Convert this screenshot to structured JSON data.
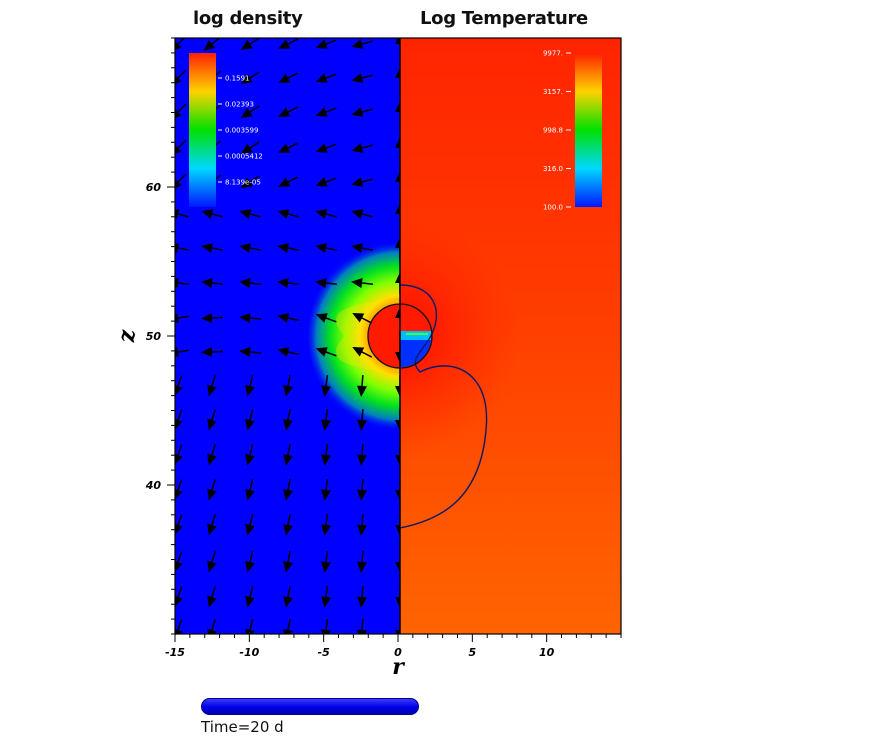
{
  "panels": {
    "left_title": "log density",
    "right_title": "Log Temperature"
  },
  "time_label": "Time=20 d",
  "chart_data": {
    "type": "heatmap",
    "xlabel": "r",
    "ylabel": "z",
    "xlim": [
      -15,
      15
    ],
    "ylim": [
      30,
      70
    ],
    "x_ticks": [
      -15,
      -10,
      -5,
      0,
      5,
      10
    ],
    "y_ticks": [
      40,
      50,
      60
    ],
    "left_field": "log density",
    "right_field": "Log Temperature",
    "density_colorbar": {
      "labels": [
        "0.1591",
        "0.02393",
        "0.003599",
        "0.0005412",
        "8.139e-05"
      ],
      "colors": [
        "#ff2a00",
        "#ffe600",
        "#00e600",
        "#00e6ff",
        "#0018ff"
      ]
    },
    "temperature_colorbar": {
      "labels": [
        "9977.",
        "3157.",
        "998.8",
        "316.0",
        "100.0"
      ],
      "colors": [
        "#ff2a00",
        "#ffe600",
        "#00e600",
        "#00e6ff",
        "#0018ff"
      ]
    },
    "cloud_center": {
      "r": 0,
      "z": 50
    },
    "cloud_radius": 2,
    "vector_field": "velocity arrows in left panel"
  }
}
